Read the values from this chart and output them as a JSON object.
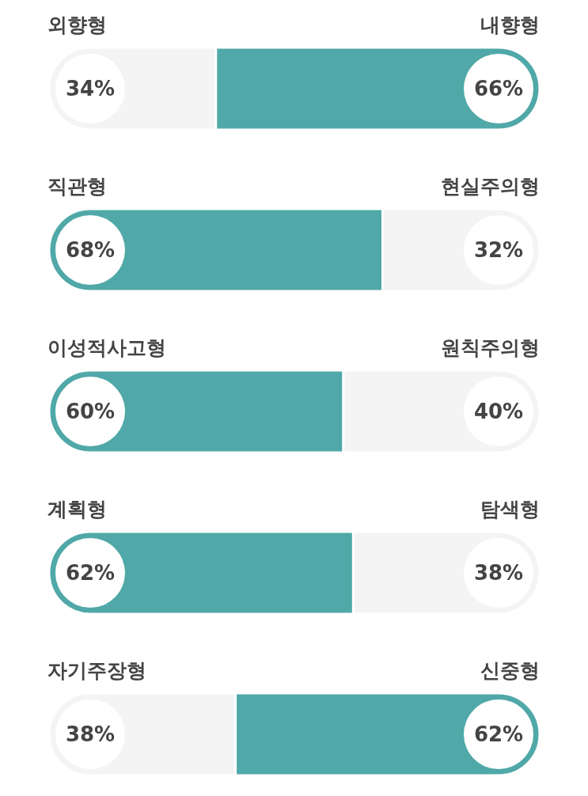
{
  "chart_data": [
    {
      "type": "bar",
      "orientation": "horizontal",
      "stacked": true,
      "categories": [
        null
      ],
      "series": [
        {
          "name": "외향형",
          "color": "#f4f4f4",
          "values": [
            34
          ],
          "value_labels": [
            "34%"
          ]
        },
        {
          "name": "내향형",
          "color": "#50a8a8",
          "values": [
            66
          ],
          "value_labels": [
            "66%"
          ]
        }
      ]
    },
    {
      "type": "bar",
      "orientation": "horizontal",
      "stacked": true,
      "categories": [
        null
      ],
      "series": [
        {
          "name": "직관형",
          "color": "#50a8a8",
          "values": [
            68
          ],
          "value_labels": [
            "68%"
          ]
        },
        {
          "name": "현실주의형",
          "color": "#f4f4f4",
          "values": [
            32
          ],
          "value_labels": [
            "32%"
          ]
        }
      ]
    },
    {
      "type": "bar",
      "orientation": "horizontal",
      "stacked": true,
      "categories": [
        null
      ],
      "series": [
        {
          "name": "이성적사고형",
          "color": "#50a8a8",
          "values": [
            60
          ],
          "value_labels": [
            "60%"
          ]
        },
        {
          "name": "원칙주의형",
          "color": "#f4f4f4",
          "values": [
            40
          ],
          "value_labels": [
            "40%"
          ]
        }
      ]
    },
    {
      "type": "bar",
      "orientation": "horizontal",
      "stacked": true,
      "categories": [
        null
      ],
      "series": [
        {
          "name": "계획형",
          "color": "#50a8a8",
          "values": [
            62
          ],
          "value_labels": [
            "62%"
          ]
        },
        {
          "name": "탐색형",
          "color": "#f4f4f4",
          "values": [
            38
          ],
          "value_labels": [
            "38%"
          ]
        }
      ]
    },
    {
      "type": "bar",
      "orientation": "horizontal",
      "stacked": true,
      "categories": [
        null
      ],
      "series": [
        {
          "name": "자기주장형",
          "color": "#f4f4f4",
          "values": [
            38
          ],
          "value_labels": [
            "38%"
          ]
        },
        {
          "name": "신중형",
          "color": "#50a8a8",
          "values": [
            62
          ],
          "value_labels": [
            "62%"
          ]
        }
      ]
    }
  ]
}
